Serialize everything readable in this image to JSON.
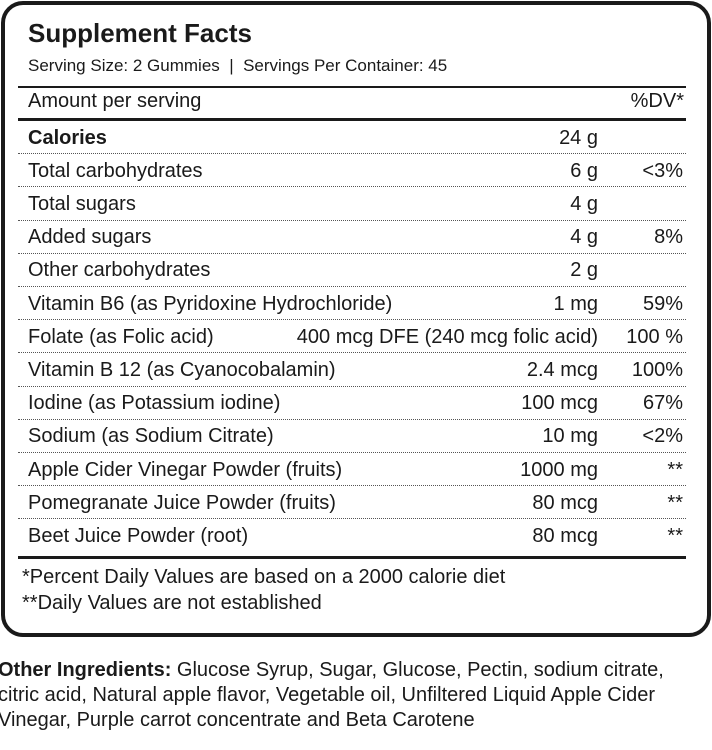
{
  "header": {
    "title": "Supplement Facts",
    "serving": "Serving Size: 2 Gummies  |  Servings Per Container: 45"
  },
  "table": {
    "header": [
      "Amount per serving",
      "%DV*"
    ],
    "rows": [
      [
        "Calories",
        "24 g"
      ],
      [
        "Total carbohydrates",
        "6 g",
        "<3%"
      ],
      [
        "Total sugars",
        "4 g"
      ],
      [
        "Added sugars",
        "4 g",
        "8%"
      ],
      [
        "Other carbohydrates",
        "2 g"
      ],
      [
        "Vitamin B6 (as Pyridoxine Hydrochloride)",
        "1 mg",
        "59%"
      ],
      [
        "Folate (as Folic acid)",
        "400 mcg DFE (240 mcg folic acid)",
        "100 %"
      ],
      [
        "Vitamin B 12 (as Cyanocobalamin)",
        "2.4 mcg",
        "100%"
      ],
      [
        "Iodine (as Potassium iodine)",
        "100 mcg",
        "67%"
      ],
      [
        "Sodium (as Sodium Citrate)",
        "10 mg",
        "<2%"
      ],
      [
        "Apple Cider Vinegar Powder (fruits)",
        "1000 mg",
        "**"
      ],
      [
        "Pomegranate Juice Powder (fruits)",
        "80 mcg",
        "**"
      ],
      [
        "Beet Juice Powder (root)",
        "80 mcg",
        "**"
      ]
    ]
  },
  "footnotes": [
    "*Percent Daily Values are based on a 2000 calorie diet",
    "**Daily Values are not established"
  ],
  "other_ingredients": {
    "label": "Other Ingredients:",
    "text": " Glucose Syrup, Sugar, Glucose, Pectin, sodium citrate, citric acid, Natural apple flavor, Vegetable oil, Unfiltered Liquid Apple Cider Vinegar, Purple carrot concentrate and Beta Carotene"
  }
}
